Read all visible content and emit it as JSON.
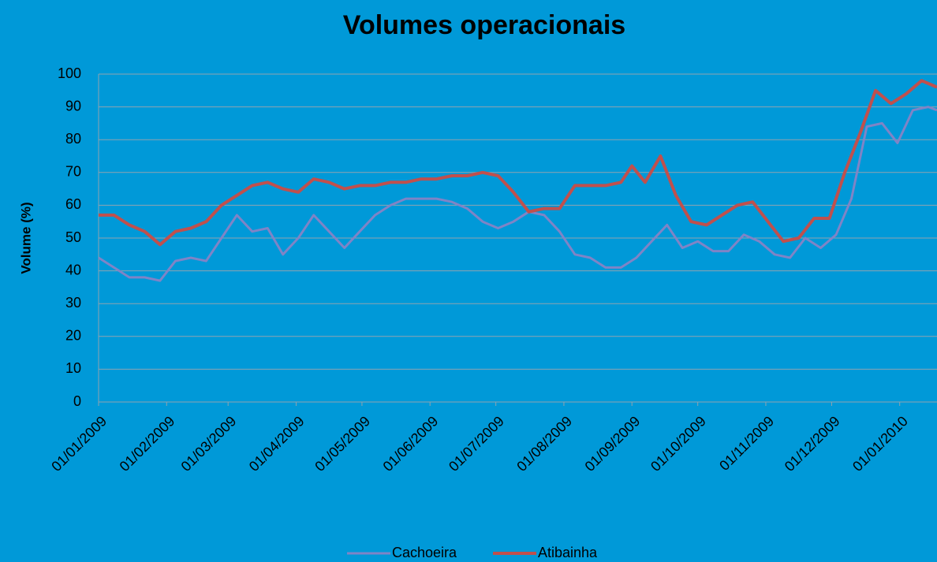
{
  "chart_data": {
    "type": "line",
    "title": "Volumes operacionais",
    "y_label": "Volume (%)",
    "ylim": [
      0,
      100
    ],
    "yticks": [
      0,
      10,
      20,
      30,
      40,
      50,
      60,
      70,
      80,
      90,
      100
    ],
    "xlim": [
      "01/01/2009",
      "18/01/2010"
    ],
    "xticks": [
      "01/01/2009",
      "01/02/2009",
      "01/03/2009",
      "01/04/2009",
      "01/05/2009",
      "01/06/2009",
      "01/07/2009",
      "01/08/2009",
      "01/09/2009",
      "01/10/2009",
      "01/11/2009",
      "01/12/2009",
      "01/01/2010"
    ],
    "grid": true,
    "legend": "bottom",
    "series": [
      {
        "name": "Cachoeira",
        "color": "#7f84c6",
        "x": [
          "01/01/2009",
          "08/01/2009",
          "15/01/2009",
          "22/01/2009",
          "29/01/2009",
          "05/02/2009",
          "12/02/2009",
          "19/02/2009",
          "26/02/2009",
          "05/03/2009",
          "12/03/2009",
          "19/03/2009",
          "26/03/2009",
          "02/04/2009",
          "09/04/2009",
          "16/04/2009",
          "23/04/2009",
          "30/04/2009",
          "07/05/2009",
          "14/05/2009",
          "21/05/2009",
          "28/05/2009",
          "04/06/2009",
          "11/06/2009",
          "18/06/2009",
          "25/06/2009",
          "02/07/2009",
          "09/07/2009",
          "16/07/2009",
          "23/07/2009",
          "30/07/2009",
          "06/08/2009",
          "13/08/2009",
          "20/08/2009",
          "27/08/2009",
          "03/09/2009",
          "10/09/2009",
          "17/09/2009",
          "24/09/2009",
          "01/10/2009",
          "08/10/2009",
          "15/10/2009",
          "22/10/2009",
          "29/10/2009",
          "05/11/2009",
          "12/11/2009",
          "19/11/2009",
          "26/11/2009",
          "03/12/2009",
          "10/12/2009",
          "17/12/2009",
          "24/12/2009",
          "31/12/2009",
          "07/01/2010",
          "14/01/2010",
          "18/01/2010"
        ],
        "values": [
          44,
          41,
          38,
          38,
          37,
          43,
          44,
          43,
          50,
          57,
          52,
          53,
          45,
          50,
          57,
          52,
          47,
          52,
          57,
          60,
          62,
          62,
          62,
          61,
          59,
          55,
          53,
          55,
          58,
          57,
          52,
          45,
          44,
          41,
          41,
          44,
          49,
          54,
          47,
          49,
          46,
          46,
          51,
          49,
          45,
          44,
          50,
          47,
          51,
          62,
          84,
          85,
          79,
          89,
          90,
          89
        ]
      },
      {
        "name": "Atibainha",
        "color": "#c0504d",
        "x": [
          "01/01/2009",
          "08/01/2009",
          "15/01/2009",
          "22/01/2009",
          "29/01/2009",
          "05/02/2009",
          "12/02/2009",
          "19/02/2009",
          "26/02/2009",
          "05/03/2009",
          "12/03/2009",
          "19/03/2009",
          "26/03/2009",
          "02/04/2009",
          "09/04/2009",
          "16/04/2009",
          "23/04/2009",
          "30/04/2009",
          "07/05/2009",
          "14/05/2009",
          "21/05/2009",
          "28/05/2009",
          "04/06/2009",
          "11/06/2009",
          "18/06/2009",
          "25/06/2009",
          "02/07/2009",
          "09/07/2009",
          "16/07/2009",
          "23/07/2009",
          "30/07/2009",
          "06/08/2009",
          "13/08/2009",
          "20/08/2009",
          "27/08/2009",
          "01/09/2009",
          "07/09/2009",
          "14/09/2009",
          "21/09/2009",
          "28/09/2009",
          "05/10/2009",
          "12/10/2009",
          "19/10/2009",
          "26/10/2009",
          "02/11/2009",
          "09/11/2009",
          "16/11/2009",
          "23/11/2009",
          "30/11/2009",
          "07/12/2009",
          "14/12/2009",
          "21/12/2009",
          "28/12/2009",
          "04/01/2010",
          "11/01/2010",
          "18/01/2010"
        ],
        "values": [
          57,
          57,
          54,
          52,
          48,
          52,
          53,
          55,
          60,
          63,
          66,
          67,
          65,
          64,
          68,
          67,
          65,
          66,
          66,
          67,
          67,
          68,
          68,
          69,
          69,
          70,
          69,
          64,
          58,
          59,
          59,
          66,
          66,
          66,
          67,
          72,
          67,
          75,
          63,
          55,
          54,
          57,
          60,
          61,
          55,
          49,
          50,
          56,
          56,
          70,
          82,
          95,
          91,
          94,
          98,
          96
        ]
      }
    ]
  }
}
